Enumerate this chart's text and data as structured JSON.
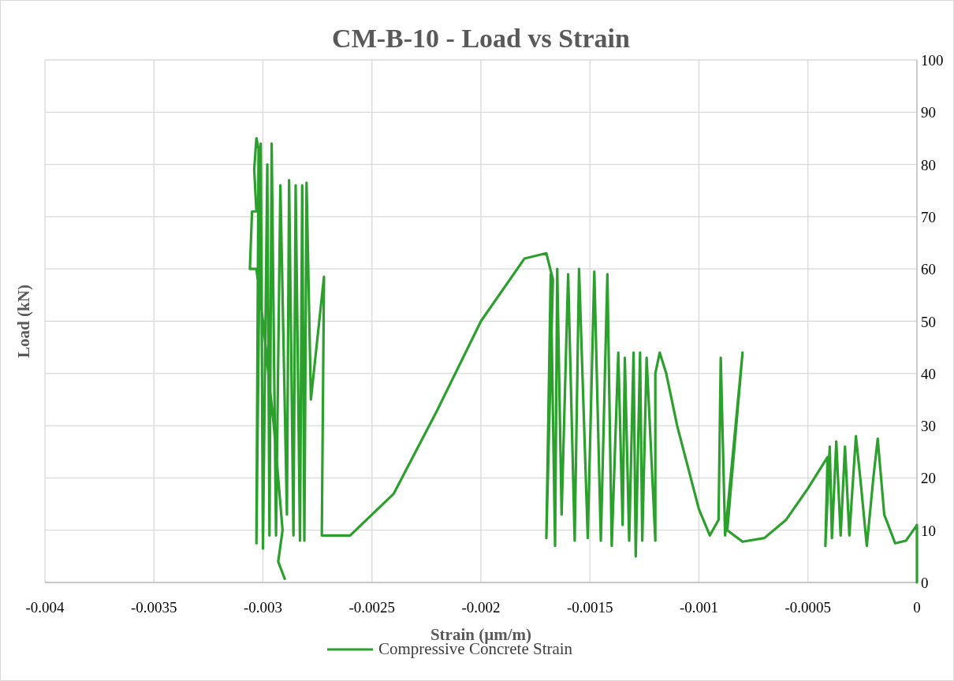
{
  "chart_data": {
    "type": "line",
    "title": "CM-B-10 - Load vs Strain",
    "xlabel": "Strain (µm/m)",
    "ylabel": "Load (kN)",
    "xlim": [
      -0.004,
      0
    ],
    "xticks": [
      -0.004,
      -0.0035,
      -0.003,
      -0.0025,
      -0.002,
      -0.0015,
      -0.001,
      -0.0005,
      0
    ],
    "ylim": [
      0,
      100
    ],
    "yticks": [
      0,
      10,
      20,
      30,
      40,
      50,
      60,
      70,
      80,
      90,
      100
    ],
    "grid": true,
    "legend": "bottom",
    "line_style": "solid",
    "series": [
      {
        "name": "Compressive Concrete Strain",
        "color": "#2ca02c",
        "x": [
          0,
          0,
          -5e-05,
          -0.0001,
          -0.00015,
          -0.00018,
          -0.0002,
          -0.00023,
          -0.00026,
          -0.00028,
          -0.00031,
          -0.00033,
          -0.00035,
          -0.00037,
          -0.00039,
          -0.0004,
          -0.00042,
          -0.00041,
          -0.0005,
          -0.0006,
          -0.0007,
          -0.0008,
          -0.00087,
          -0.0008,
          -0.00088,
          -0.0009,
          -0.00091,
          -0.00095,
          -0.001,
          -0.0011,
          -0.00115,
          -0.00118,
          -0.0012,
          -0.0012,
          -0.00124,
          -0.00126,
          -0.00127,
          -0.00129,
          -0.0013,
          -0.00132,
          -0.00134,
          -0.00135,
          -0.00137,
          -0.0014,
          -0.00142,
          -0.00145,
          -0.00148,
          -0.00151,
          -0.00155,
          -0.00157,
          -0.0016,
          -0.00163,
          -0.00165,
          -0.00166,
          -0.00168,
          -0.0017,
          -0.00167,
          -0.0017,
          -0.0018,
          -0.002,
          -0.0022,
          -0.0024,
          -0.0026,
          -0.00273,
          -0.00272,
          -0.00278,
          -0.0028,
          -0.00281,
          -0.00282,
          -0.00283,
          -0.00285,
          -0.00286,
          -0.00288,
          -0.00289,
          -0.00292,
          -0.00294,
          -0.00296,
          -0.00297,
          -0.00298,
          -0.003,
          -0.00301,
          -0.00303,
          -0.00302,
          -0.00303,
          -0.00304,
          -0.00303,
          -0.00305,
          -0.00306,
          -0.00303,
          -0.003,
          -0.00295,
          -0.00293,
          -0.00291,
          -0.00293,
          -0.0029
        ],
        "values": [
          0,
          11,
          8,
          7.5,
          13,
          27.5,
          20,
          7,
          20,
          28,
          9,
          26,
          9,
          27,
          8.5,
          26,
          7,
          24,
          18,
          12,
          8.5,
          7.8,
          10,
          44,
          9,
          43,
          12,
          9,
          14,
          30,
          40,
          44,
          40,
          8,
          43,
          8,
          44,
          5,
          44,
          8,
          43,
          11,
          44,
          7,
          59,
          8,
          59.5,
          8.5,
          60,
          8,
          59,
          13,
          60,
          7,
          59,
          8.5,
          58,
          63,
          62,
          50,
          33,
          17,
          9,
          9,
          58.5,
          35,
          76.5,
          8,
          76,
          8,
          76,
          9,
          77,
          13,
          76,
          9,
          84,
          9,
          80,
          6.5,
          84,
          7.5,
          83,
          85,
          79,
          71,
          71,
          60,
          60,
          50,
          30,
          20,
          10,
          4,
          0.7
        ]
      }
    ]
  }
}
